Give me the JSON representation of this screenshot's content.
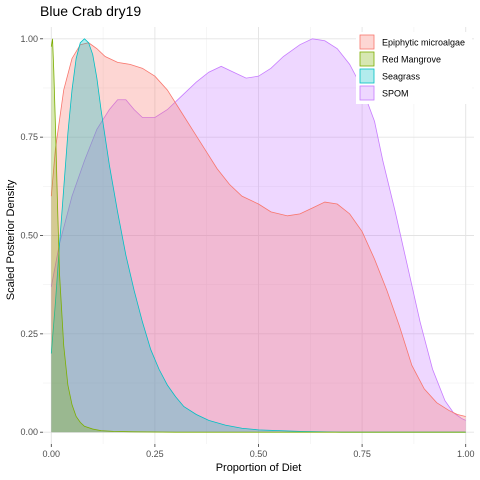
{
  "chart_data": {
    "type": "area",
    "title": "Blue Crab dry19",
    "xlabel": "Proportion of Diet",
    "ylabel": "Scaled Posterior Density",
    "xlim": [
      -0.02,
      1.02
    ],
    "ylim": [
      -0.03,
      1.03
    ],
    "x_ticks": [
      0,
      0.25,
      0.5,
      0.75,
      1
    ],
    "x_tick_labels": [
      "0.00",
      "0.25",
      "0.50",
      "0.75",
      "1.00"
    ],
    "y_ticks": [
      0,
      0.25,
      0.5,
      0.75,
      1
    ],
    "y_tick_labels": [
      "0.00",
      "0.25",
      "0.50",
      "0.75",
      "1.00"
    ],
    "grid": true,
    "legend_position": "top-right",
    "series": [
      {
        "name": "SPOM",
        "fill": "#c77cff",
        "points": [
          [
            0.0,
            0.37
          ],
          [
            0.02,
            0.48
          ],
          [
            0.05,
            0.6
          ],
          [
            0.08,
            0.69
          ],
          [
            0.11,
            0.77
          ],
          [
            0.14,
            0.82
          ],
          [
            0.16,
            0.845
          ],
          [
            0.18,
            0.845
          ],
          [
            0.2,
            0.82
          ],
          [
            0.22,
            0.8
          ],
          [
            0.25,
            0.8
          ],
          [
            0.28,
            0.82
          ],
          [
            0.31,
            0.85
          ],
          [
            0.35,
            0.89
          ],
          [
            0.38,
            0.915
          ],
          [
            0.41,
            0.93
          ],
          [
            0.44,
            0.915
          ],
          [
            0.47,
            0.9
          ],
          [
            0.5,
            0.905
          ],
          [
            0.53,
            0.925
          ],
          [
            0.56,
            0.955
          ],
          [
            0.6,
            0.985
          ],
          [
            0.63,
            1.0
          ],
          [
            0.66,
            0.995
          ],
          [
            0.69,
            0.975
          ],
          [
            0.72,
            0.935
          ],
          [
            0.75,
            0.875
          ],
          [
            0.78,
            0.79
          ],
          [
            0.8,
            0.69
          ],
          [
            0.83,
            0.56
          ],
          [
            0.86,
            0.42
          ],
          [
            0.89,
            0.28
          ],
          [
            0.92,
            0.16
          ],
          [
            0.95,
            0.08
          ],
          [
            0.97,
            0.05
          ],
          [
            0.99,
            0.035
          ],
          [
            1.0,
            0.03
          ]
        ]
      },
      {
        "name": "Epiphytic microalgae",
        "fill": "#f8766d",
        "points": [
          [
            0.0,
            0.6
          ],
          [
            0.01,
            0.72
          ],
          [
            0.03,
            0.87
          ],
          [
            0.05,
            0.95
          ],
          [
            0.07,
            0.985
          ],
          [
            0.09,
            0.99
          ],
          [
            0.11,
            0.975
          ],
          [
            0.13,
            0.955
          ],
          [
            0.16,
            0.94
          ],
          [
            0.19,
            0.935
          ],
          [
            0.22,
            0.925
          ],
          [
            0.25,
            0.905
          ],
          [
            0.28,
            0.87
          ],
          [
            0.31,
            0.82
          ],
          [
            0.34,
            0.77
          ],
          [
            0.37,
            0.72
          ],
          [
            0.4,
            0.67
          ],
          [
            0.43,
            0.63
          ],
          [
            0.46,
            0.6
          ],
          [
            0.5,
            0.58
          ],
          [
            0.53,
            0.56
          ],
          [
            0.57,
            0.55
          ],
          [
            0.6,
            0.555
          ],
          [
            0.63,
            0.57
          ],
          [
            0.66,
            0.585
          ],
          [
            0.69,
            0.58
          ],
          [
            0.72,
            0.555
          ],
          [
            0.75,
            0.51
          ],
          [
            0.78,
            0.44
          ],
          [
            0.81,
            0.36
          ],
          [
            0.84,
            0.27
          ],
          [
            0.87,
            0.17
          ],
          [
            0.9,
            0.11
          ],
          [
            0.93,
            0.075
          ],
          [
            0.96,
            0.055
          ],
          [
            0.98,
            0.045
          ],
          [
            1.0,
            0.04
          ]
        ]
      },
      {
        "name": "Seagrass",
        "fill": "#00bfc4",
        "points": [
          [
            0.0,
            0.2
          ],
          [
            0.01,
            0.33
          ],
          [
            0.02,
            0.48
          ],
          [
            0.03,
            0.62
          ],
          [
            0.04,
            0.76
          ],
          [
            0.05,
            0.87
          ],
          [
            0.06,
            0.95
          ],
          [
            0.07,
            0.99
          ],
          [
            0.08,
            1.0
          ],
          [
            0.09,
            0.99
          ],
          [
            0.1,
            0.96
          ],
          [
            0.11,
            0.9
          ],
          [
            0.12,
            0.82
          ],
          [
            0.14,
            0.68
          ],
          [
            0.16,
            0.56
          ],
          [
            0.18,
            0.45
          ],
          [
            0.2,
            0.36
          ],
          [
            0.22,
            0.28
          ],
          [
            0.24,
            0.21
          ],
          [
            0.26,
            0.16
          ],
          [
            0.28,
            0.12
          ],
          [
            0.3,
            0.09
          ],
          [
            0.32,
            0.065
          ],
          [
            0.35,
            0.045
          ],
          [
            0.38,
            0.03
          ],
          [
            0.42,
            0.018
          ],
          [
            0.46,
            0.01
          ],
          [
            0.5,
            0.006
          ],
          [
            0.6,
            0.002
          ],
          [
            0.7,
            0.0
          ],
          [
            0.8,
            0.0
          ],
          [
            1.0,
            0.0
          ]
        ]
      },
      {
        "name": "Red Mangrove",
        "fill": "#7cae00",
        "points": [
          [
            0.0,
            0.98
          ],
          [
            0.003,
            1.0
          ],
          [
            0.006,
            0.92
          ],
          [
            0.01,
            0.78
          ],
          [
            0.015,
            0.58
          ],
          [
            0.02,
            0.4
          ],
          [
            0.03,
            0.22
          ],
          [
            0.04,
            0.12
          ],
          [
            0.05,
            0.07
          ],
          [
            0.06,
            0.04
          ],
          [
            0.07,
            0.025
          ],
          [
            0.08,
            0.015
          ],
          [
            0.1,
            0.008
          ],
          [
            0.12,
            0.004
          ],
          [
            0.15,
            0.002
          ],
          [
            0.2,
            0.001
          ],
          [
            0.3,
            0.0
          ],
          [
            1.0,
            0.0
          ]
        ]
      }
    ]
  }
}
